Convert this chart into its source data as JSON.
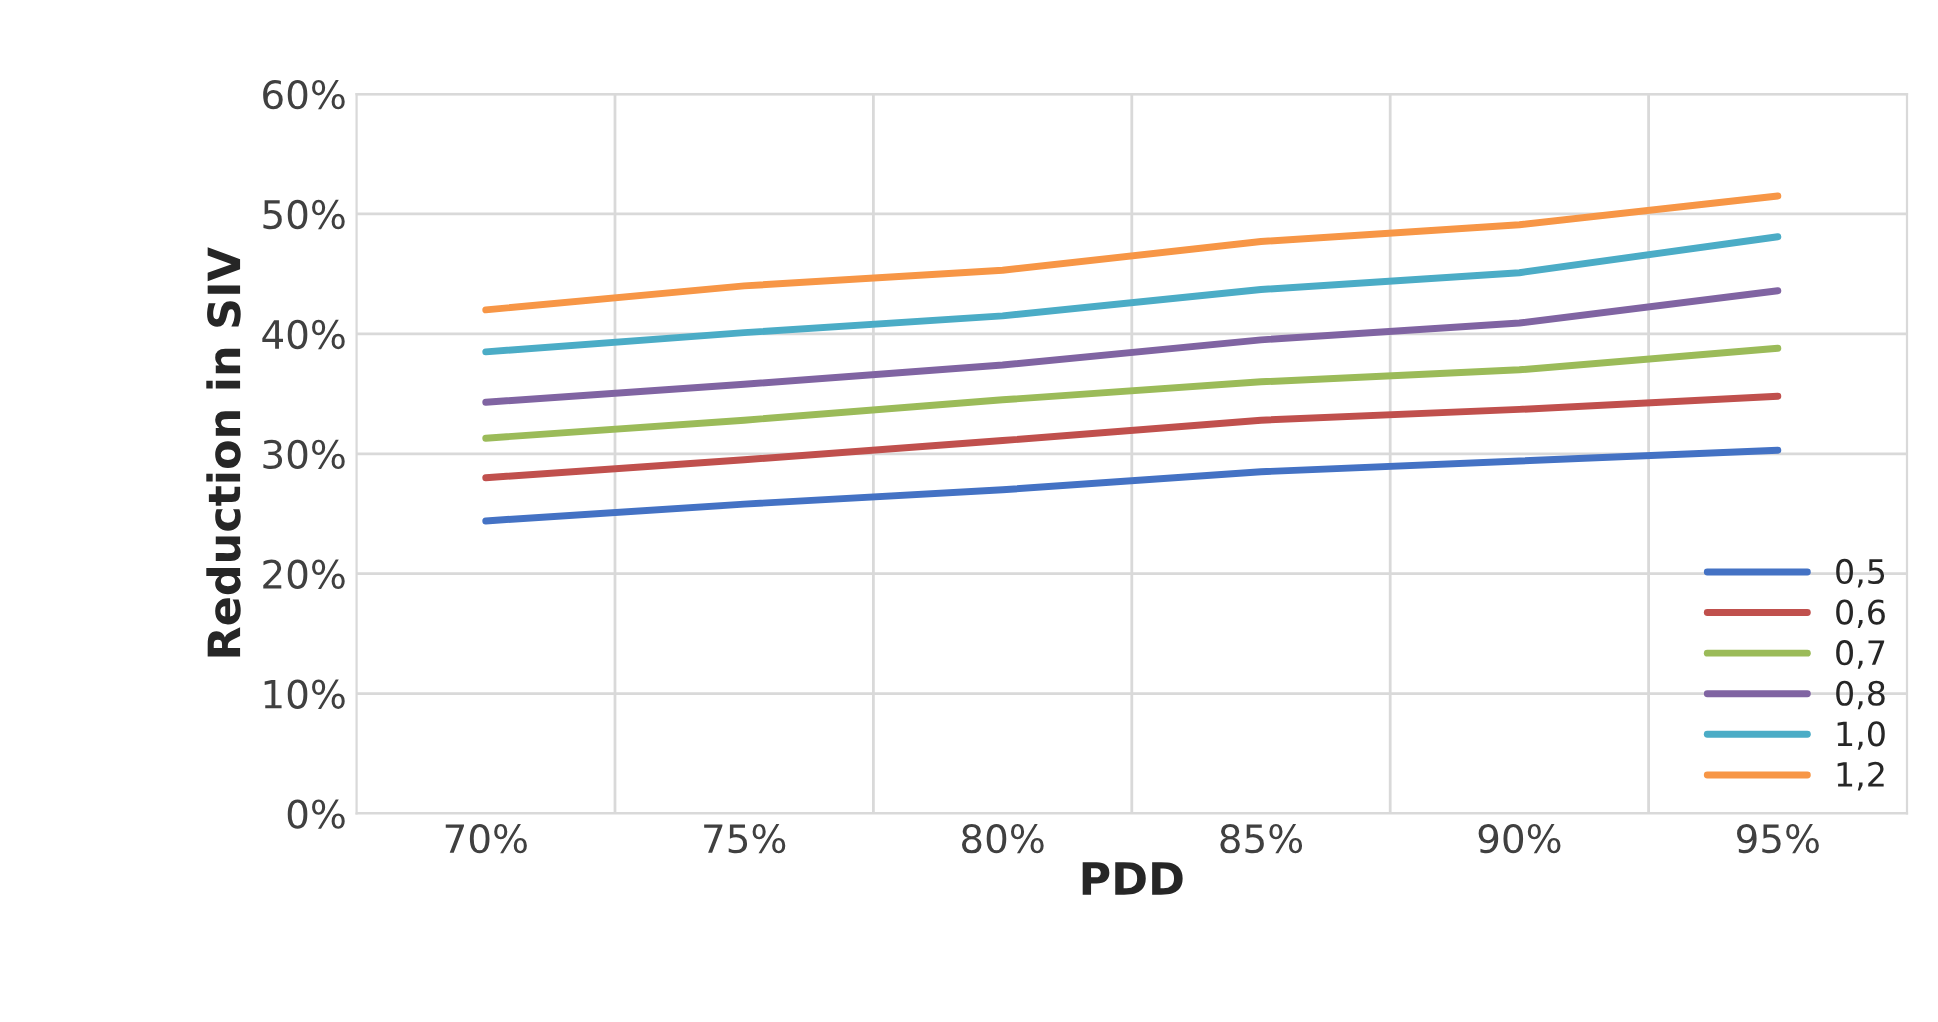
{
  "chart_data": {
    "type": "line",
    "xlabel": "PDD",
    "ylabel": "Reduction in SIV",
    "categories": [
      "70%",
      "75%",
      "80%",
      "85%",
      "90%",
      "95%"
    ],
    "series": [
      {
        "name": "0,5",
        "color": "#4472c4",
        "values": [
          24.4,
          25.8,
          27.0,
          28.5,
          29.4,
          30.3
        ]
      },
      {
        "name": "0,6",
        "color": "#c0504d",
        "values": [
          28.0,
          29.5,
          31.1,
          32.8,
          33.7,
          34.8
        ]
      },
      {
        "name": "0,7",
        "color": "#9bbb59",
        "values": [
          31.3,
          32.8,
          34.5,
          36.0,
          37.0,
          38.8
        ]
      },
      {
        "name": "0,8",
        "color": "#8064a2",
        "values": [
          34.3,
          35.8,
          37.4,
          39.5,
          40.9,
          43.6
        ]
      },
      {
        "name": "1,0",
        "color": "#4bacc6",
        "values": [
          38.5,
          40.1,
          41.5,
          43.7,
          45.1,
          48.1
        ]
      },
      {
        "name": "1,2",
        "color": "#f79646",
        "values": [
          42.0,
          44.0,
          45.3,
          47.7,
          49.1,
          51.5
        ]
      }
    ],
    "ylim": [
      0,
      60
    ],
    "yticks": [
      {
        "value": 0,
        "label": "0%"
      },
      {
        "value": 10,
        "label": "10%"
      },
      {
        "value": 20,
        "label": "20%"
      },
      {
        "value": 30,
        "label": "30%"
      },
      {
        "value": 40,
        "label": "40%"
      },
      {
        "value": 50,
        "label": "50%"
      },
      {
        "value": 60,
        "label": "60%"
      }
    ],
    "grid": true,
    "legend": "bottom right",
    "marker": "none",
    "line_style": "solid"
  }
}
